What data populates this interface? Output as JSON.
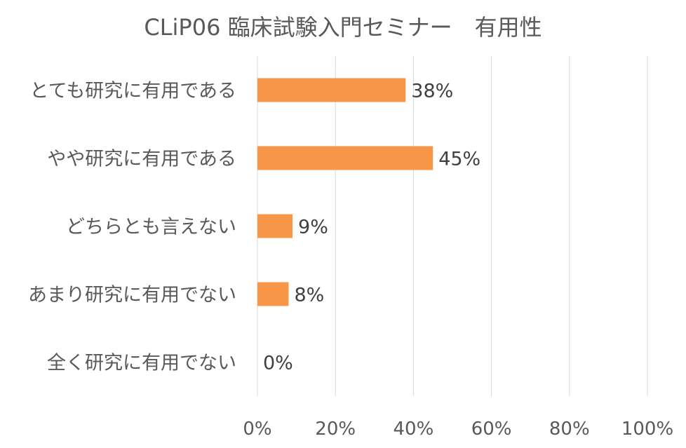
{
  "chart_data": {
    "type": "bar",
    "orientation": "horizontal",
    "title": "CLiP06 臨床試験入門セミナー　有用性",
    "categories": [
      "とても研究に有用である",
      "やや研究に有用である",
      "どちらとも言えない",
      "あまり研究に有用でない",
      "全く研究に有用でない"
    ],
    "values": [
      38,
      45,
      9,
      8,
      0
    ],
    "data_labels": [
      "38%",
      "45%",
      "9%",
      "8%",
      "0%"
    ],
    "xlim": [
      0,
      100
    ],
    "x_ticks": [
      "0%",
      "20%",
      "40%",
      "60%",
      "80%",
      "100%"
    ],
    "grid": "vertical",
    "legend": "none",
    "bar_color": "#F79646",
    "grid_color": "#D9D9D9",
    "text_color": "#595959"
  }
}
